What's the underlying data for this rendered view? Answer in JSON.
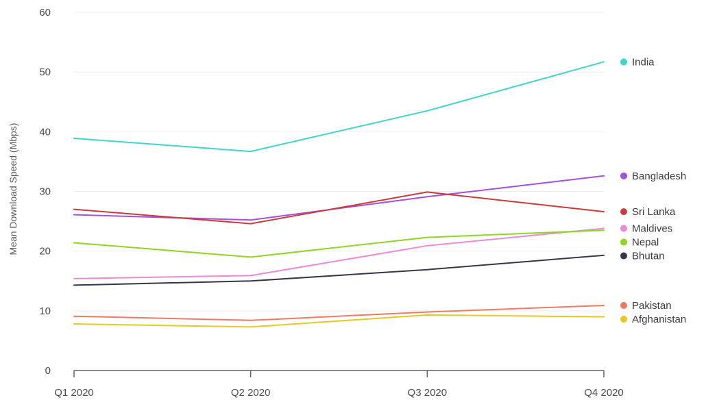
{
  "chart_data": {
    "type": "line",
    "title": "",
    "xlabel": "",
    "ylabel": "Mean Download Speed (Mbps)",
    "categories": [
      "Q1 2020",
      "Q2 2020",
      "Q3 2020",
      "Q4 2020"
    ],
    "ylim": [
      0,
      60
    ],
    "yticks": [
      0,
      10,
      20,
      30,
      40,
      50,
      60
    ],
    "grid": true,
    "legend_placement": "right, inline at line ends",
    "series": [
      {
        "name": "India",
        "color": "#3fd6cc",
        "values": [
          38.9,
          36.7,
          43.5,
          51.7
        ]
      },
      {
        "name": "Bangladesh",
        "color": "#a64fd8",
        "values": [
          26.1,
          25.2,
          29.1,
          32.6
        ]
      },
      {
        "name": "Sri Lanka",
        "color": "#cc3a3a",
        "values": [
          27.0,
          24.6,
          29.9,
          26.6
        ]
      },
      {
        "name": "Maldives",
        "color": "#ec8ad6",
        "values": [
          15.4,
          15.9,
          20.9,
          23.8
        ]
      },
      {
        "name": "Nepal",
        "color": "#8ed61f",
        "values": [
          21.4,
          19.0,
          22.3,
          23.5
        ]
      },
      {
        "name": "Bhutan",
        "color": "#34374a",
        "values": [
          14.3,
          15.0,
          16.9,
          19.3
        ]
      },
      {
        "name": "Pakistan",
        "color": "#f07a62",
        "values": [
          9.1,
          8.4,
          9.8,
          10.9
        ]
      },
      {
        "name": "Afghanistan",
        "color": "#e8c623",
        "values": [
          7.8,
          7.3,
          9.3,
          9.0
        ]
      }
    ]
  }
}
